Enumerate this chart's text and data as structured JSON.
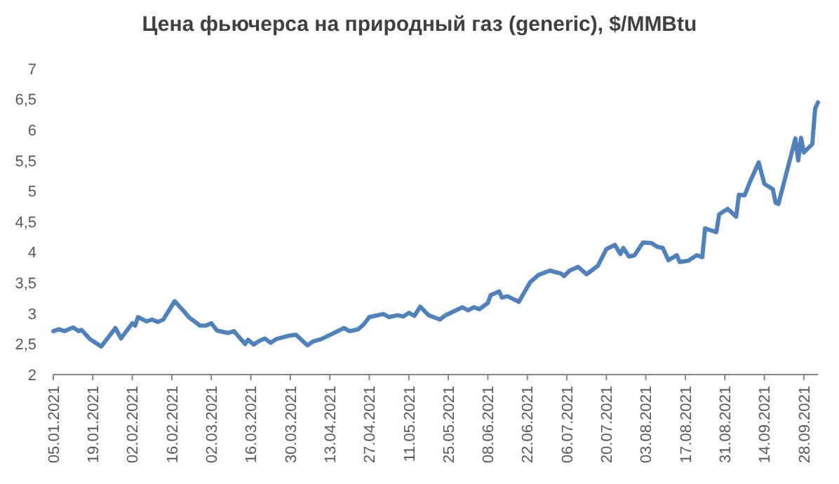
{
  "chart_data": {
    "type": "line",
    "title": "Цена фьючерса на природный газ (generic), $/MMBtu",
    "x": [
      "2021-01-05",
      "2021-01-07",
      "2021-01-09",
      "2021-01-12",
      "2021-01-14",
      "2021-01-15",
      "2021-01-18",
      "2021-01-22",
      "2021-01-27",
      "2021-01-29",
      "2021-02-02",
      "2021-02-03",
      "2021-02-04",
      "2021-02-07",
      "2021-02-09",
      "2021-02-11",
      "2021-02-13",
      "2021-02-17",
      "2021-02-20",
      "2021-02-22",
      "2021-02-26",
      "2021-02-28",
      "2021-03-02",
      "2021-03-04",
      "2021-03-08",
      "2021-03-10",
      "2021-03-14",
      "2021-03-15",
      "2021-03-17",
      "2021-03-19",
      "2021-03-21",
      "2021-03-23",
      "2021-03-25",
      "2021-03-29",
      "2021-04-01",
      "2021-04-05",
      "2021-04-07",
      "2021-04-10",
      "2021-04-14",
      "2021-04-18",
      "2021-04-20",
      "2021-04-23",
      "2021-04-25",
      "2021-04-27",
      "2021-05-02",
      "2021-05-04",
      "2021-05-07",
      "2021-05-09",
      "2021-05-11",
      "2021-05-13",
      "2021-05-15",
      "2021-05-18",
      "2021-05-22",
      "2021-05-24",
      "2021-05-30",
      "2021-06-01",
      "2021-06-03",
      "2021-06-05",
      "2021-06-08",
      "2021-06-09",
      "2021-06-12",
      "2021-06-13",
      "2021-06-15",
      "2021-06-19",
      "2021-06-23",
      "2021-06-26",
      "2021-06-30",
      "2021-07-04",
      "2021-07-05",
      "2021-07-07",
      "2021-07-10",
      "2021-07-13",
      "2021-07-17",
      "2021-07-20",
      "2021-07-23",
      "2021-07-25",
      "2021-07-26",
      "2021-07-28",
      "2021-07-30",
      "2021-08-02",
      "2021-08-05",
      "2021-08-07",
      "2021-08-09",
      "2021-08-11",
      "2021-08-14",
      "2021-08-15",
      "2021-08-18",
      "2021-08-21",
      "2021-08-23",
      "2021-08-24",
      "2021-08-28",
      "2021-08-29",
      "2021-09-01",
      "2021-09-04",
      "2021-09-05",
      "2021-09-07",
      "2021-09-09",
      "2021-09-12",
      "2021-09-14",
      "2021-09-17",
      "2021-09-18",
      "2021-09-19",
      "2021-09-25",
      "2021-09-26",
      "2021-09-27",
      "2021-09-28",
      "2021-10-01",
      "2021-10-02",
      "2021-10-03"
    ],
    "series": [
      {
        "color": "#4f81bd",
        "values": [
          2.71,
          2.74,
          2.71,
          2.77,
          2.71,
          2.73,
          2.58,
          2.46,
          2.76,
          2.59,
          2.84,
          2.8,
          2.94,
          2.87,
          2.9,
          2.86,
          2.9,
          3.2,
          3.05,
          2.94,
          2.8,
          2.8,
          2.84,
          2.72,
          2.68,
          2.71,
          2.5,
          2.57,
          2.49,
          2.55,
          2.59,
          2.52,
          2.58,
          2.63,
          2.65,
          2.48,
          2.54,
          2.58,
          2.67,
          2.76,
          2.71,
          2.74,
          2.82,
          2.94,
          2.99,
          2.94,
          2.97,
          2.95,
          3.01,
          2.96,
          3.11,
          2.97,
          2.9,
          2.97,
          3.1,
          3.05,
          3.1,
          3.07,
          3.17,
          3.3,
          3.36,
          3.26,
          3.28,
          3.19,
          3.51,
          3.63,
          3.7,
          3.65,
          3.61,
          3.7,
          3.76,
          3.64,
          3.78,
          4.05,
          4.12,
          3.97,
          4.07,
          3.93,
          3.95,
          4.16,
          4.15,
          4.09,
          4.07,
          3.87,
          3.95,
          3.84,
          3.86,
          3.95,
          3.92,
          4.39,
          4.33,
          4.62,
          4.71,
          4.58,
          4.94,
          4.93,
          5.16,
          5.47,
          5.12,
          5.03,
          4.81,
          4.79,
          5.86,
          5.5,
          5.87,
          5.63,
          5.77,
          6.35,
          6.45
        ]
      }
    ],
    "xlim": [
      "2021-01-05",
      "2021-10-03"
    ],
    "xticks": [
      {
        "value": "2021-01-05",
        "label": "05.01.2021"
      },
      {
        "value": "2021-01-19",
        "label": "19.01.2021"
      },
      {
        "value": "2021-02-02",
        "label": "02.02.2021"
      },
      {
        "value": "2021-02-16",
        "label": "16.02.2021"
      },
      {
        "value": "2021-03-02",
        "label": "02.03.2021"
      },
      {
        "value": "2021-03-16",
        "label": "16.03.2021"
      },
      {
        "value": "2021-03-30",
        "label": "30.03.2021"
      },
      {
        "value": "2021-04-13",
        "label": "13.04.2021"
      },
      {
        "value": "2021-04-27",
        "label": "27.04.2021"
      },
      {
        "value": "2021-05-11",
        "label": "11.05.2021"
      },
      {
        "value": "2021-05-25",
        "label": "25.05.2021"
      },
      {
        "value": "2021-06-08",
        "label": "08.06.2021"
      },
      {
        "value": "2021-06-22",
        "label": "22.06.2021"
      },
      {
        "value": "2021-07-06",
        "label": "06.07.2021"
      },
      {
        "value": "2021-07-20",
        "label": "20.07.2021"
      },
      {
        "value": "2021-08-03",
        "label": "03.08.2021"
      },
      {
        "value": "2021-08-17",
        "label": "17.08.2021"
      },
      {
        "value": "2021-08-31",
        "label": "31.08.2021"
      },
      {
        "value": "2021-09-14",
        "label": "14.09.2021"
      },
      {
        "value": "2021-09-28",
        "label": "28.09.2021"
      }
    ],
    "ylim": [
      2,
      7
    ],
    "yticks": [
      2,
      {
        "value": 2.5,
        "label": "2,5"
      },
      3,
      {
        "value": 3.5,
        "label": "3,5"
      },
      4,
      {
        "value": 4.5,
        "label": "4,5"
      },
      5,
      {
        "value": 5.5,
        "label": "5,5"
      },
      6,
      {
        "value": 6.5,
        "label": "6,5"
      },
      7
    ],
    "grid": false,
    "marker": "none",
    "line_style": "solid"
  }
}
